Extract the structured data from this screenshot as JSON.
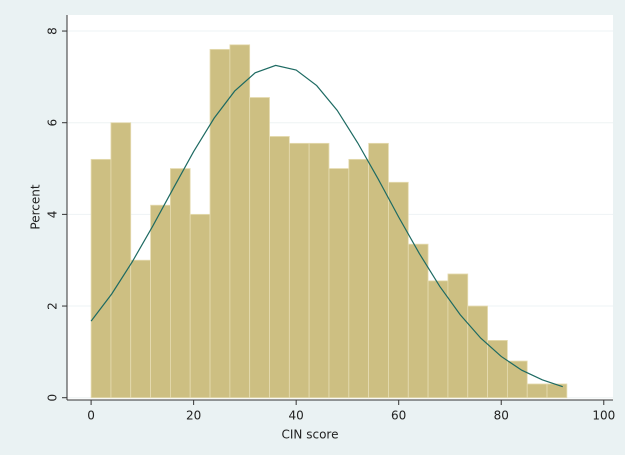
{
  "chart_data": {
    "type": "histogram",
    "x_label": "CIN score",
    "y_label": "Percent",
    "bins": [
      0,
      3.87,
      7.73,
      11.6,
      15.47,
      19.33,
      23.2,
      27.07,
      30.93,
      34.8,
      38.67,
      42.53,
      46.4,
      50.27,
      54.13,
      58,
      61.87,
      65.73,
      69.6,
      73.47,
      77.33,
      81.2,
      85.07,
      88.93,
      92.8
    ],
    "values": [
      5.2,
      6.0,
      3.0,
      4.2,
      5.0,
      4.0,
      7.6,
      7.7,
      6.55,
      5.7,
      5.55,
      5.55,
      5.0,
      5.2,
      5.55,
      4.7,
      3.35,
      2.55,
      2.7,
      2.0,
      1.25,
      0.8,
      0.3,
      0.3
    ],
    "color": "#cdbf82",
    "curve": {
      "color": "#1d6a62",
      "x": [
        0,
        4,
        8,
        12,
        16,
        20,
        24,
        28,
        32,
        36,
        40,
        44,
        48,
        52,
        56,
        60,
        64,
        68,
        72,
        76,
        80,
        84,
        88,
        92
      ],
      "values": [
        1.67,
        2.26,
        2.96,
        3.74,
        4.56,
        5.37,
        6.1,
        6.69,
        7.09,
        7.25,
        7.15,
        6.81,
        6.27,
        5.56,
        4.77,
        3.94,
        3.15,
        2.43,
        1.81,
        1.3,
        0.9,
        0.6,
        0.39,
        0.24
      ]
    },
    "xlim": [
      -4.7,
      101.8
    ],
    "ylim": [
      -0.05,
      8.35
    ],
    "xticks": [
      0,
      20,
      40,
      60,
      80,
      100
    ],
    "yticks": [
      0,
      2,
      4,
      6,
      8
    ],
    "grid": true
  }
}
